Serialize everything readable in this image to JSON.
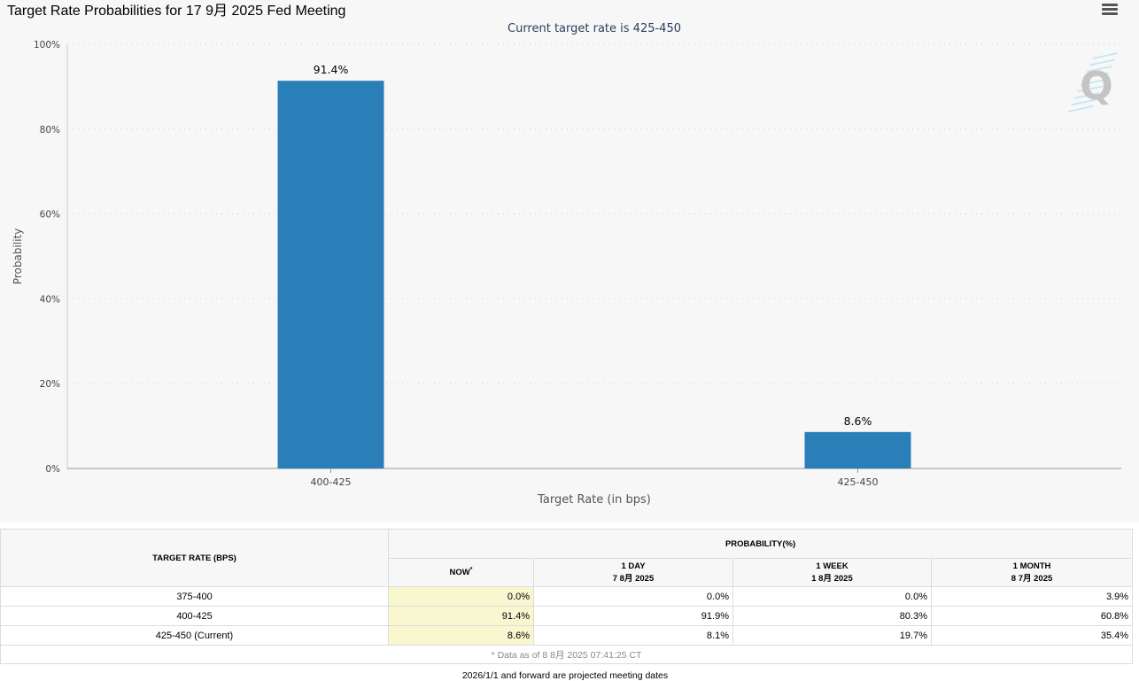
{
  "title": "Target Rate Probabilities for 17 9月 2025 Fed Meeting",
  "menu_icon": "hamburger-menu-icon",
  "watermark": "Q",
  "chart_data": {
    "type": "bar",
    "subtitle": "Current target rate is 425-450",
    "categories": [
      "400-425",
      "425-450"
    ],
    "values": [
      91.4,
      8.6
    ],
    "value_labels": [
      "91.4%",
      "8.6%"
    ],
    "xlabel": "Target Rate (in bps)",
    "ylabel": "Probability",
    "ylim": [
      0,
      100
    ],
    "yticks": [
      "0%",
      "20%",
      "40%",
      "60%",
      "80%",
      "100%"
    ],
    "grid": true,
    "bar_color": "#2a7fb8"
  },
  "table": {
    "rate_header": "TARGET RATE (BPS)",
    "prob_header": "PROBABILITY(%)",
    "cols": [
      {
        "label": "NOW",
        "sup": "*",
        "date": ""
      },
      {
        "label": "1 DAY",
        "date": "7 8月 2025"
      },
      {
        "label": "1 WEEK",
        "date": "1 8月 2025"
      },
      {
        "label": "1 MONTH",
        "date": "8 7月 2025"
      }
    ],
    "rows": [
      {
        "rate": "375-400",
        "values": [
          "0.0%",
          "0.0%",
          "0.0%",
          "3.9%"
        ]
      },
      {
        "rate": "400-425",
        "values": [
          "91.4%",
          "91.9%",
          "80.3%",
          "60.8%"
        ]
      },
      {
        "rate": "425-450 (Current)",
        "values": [
          "8.6%",
          "8.1%",
          "19.7%",
          "35.4%"
        ]
      }
    ],
    "footnote": "* Data as of 8 8月 2025 07:41:25 CT"
  },
  "forward_note": "2026/1/1 and forward are projected meeting dates"
}
